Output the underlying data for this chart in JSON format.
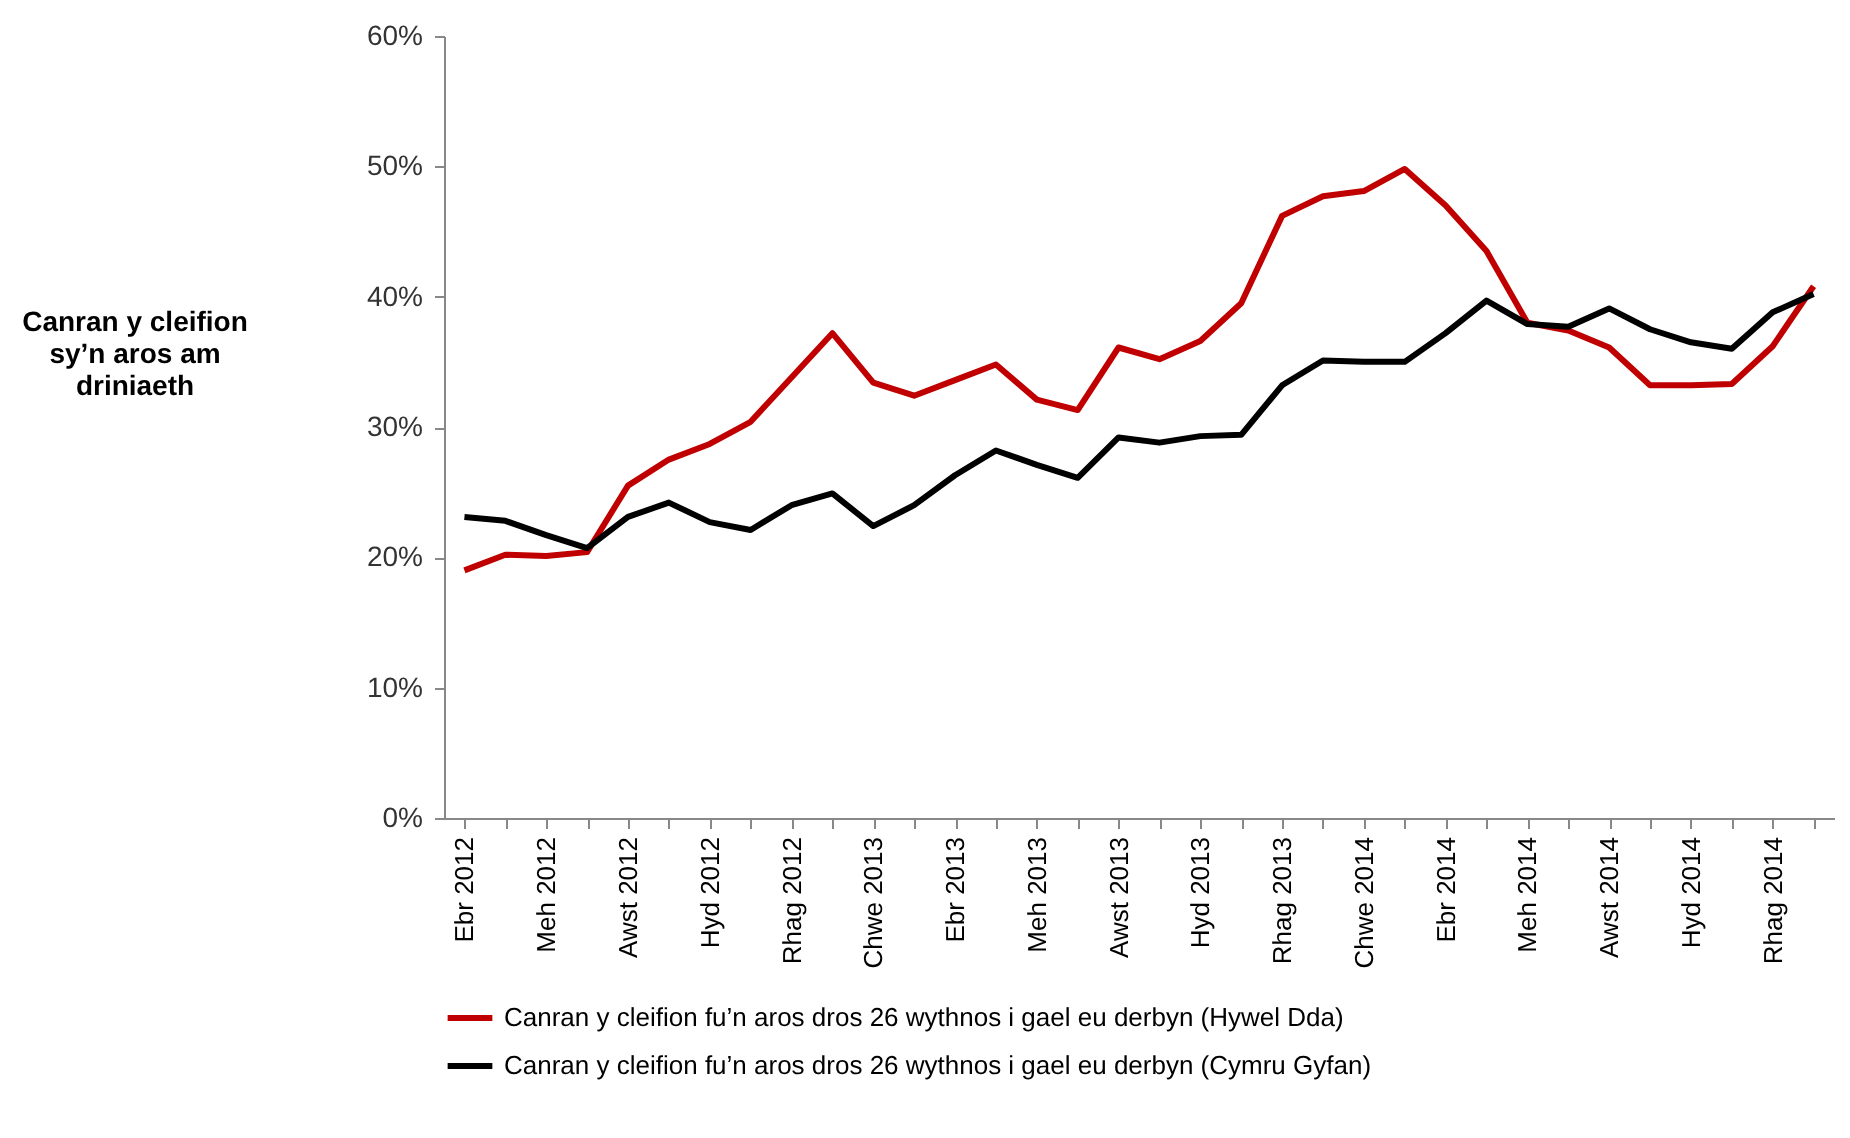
{
  "chart_data": {
    "type": "line",
    "ylabel": "Canran y cleifion sy’n aros am driniaeth",
    "categories": [
      "Ebr 2012",
      null,
      "Meh 2012",
      null,
      "Awst 2012",
      null,
      "Hyd 2012",
      null,
      "Rhag 2012",
      null,
      "Chwe 2013",
      null,
      "Ebr 2013",
      null,
      "Meh 2013",
      null,
      "Awst 2013",
      null,
      "Hyd 2013",
      null,
      "Rhag 2013",
      null,
      "Chwe 2014",
      null,
      "Ebr 2014",
      null,
      "Meh 2014",
      null,
      "Awst 2014",
      null,
      "Hyd 2014",
      null,
      "Rhag 2014",
      null
    ],
    "series": [
      {
        "name": "Canran y cleifion fu’n aros dros 26 wythnos i gael eu derbyn (Hywel Dda)",
        "color": "#c00000",
        "values": [
          19.0,
          20.2,
          20.1,
          20.4,
          25.5,
          27.5,
          28.7,
          30.4,
          33.8,
          37.2,
          33.4,
          32.4,
          33.6,
          34.8,
          32.1,
          31.3,
          36.1,
          35.2,
          36.6,
          39.5,
          46.2,
          47.7,
          48.1,
          49.8,
          47.0,
          43.5,
          38.0,
          37.4,
          36.1,
          33.2,
          33.2,
          33.3,
          36.2,
          40.8
        ]
      },
      {
        "name": "Canran y cleifion fu’n aros dros 26 wythnos i gael eu derbyn (Cymru Gyfan)",
        "color": "#000000",
        "values": [
          23.1,
          22.8,
          21.7,
          20.7,
          23.1,
          24.2,
          22.7,
          22.1,
          24.0,
          24.9,
          22.4,
          24.0,
          26.3,
          28.2,
          27.1,
          26.1,
          29.2,
          28.8,
          29.3,
          29.4,
          33.2,
          35.1,
          35.0,
          35.0,
          37.2,
          39.7,
          37.9,
          37.7,
          39.1,
          37.5,
          36.5,
          36.0,
          38.8,
          40.2
        ]
      }
    ],
    "ylim": [
      0,
      60
    ],
    "yticks": [
      {
        "value": 0,
        "label": "0%"
      },
      {
        "value": 10,
        "label": "10%"
      },
      {
        "value": 20,
        "label": "20%"
      },
      {
        "value": 30,
        "label": "30%"
      },
      {
        "value": 40,
        "label": "40%"
      },
      {
        "value": 50,
        "label": "50%"
      },
      {
        "value": 60,
        "label": "60%"
      }
    ],
    "grid": false,
    "legend": "bottom",
    "marker": "none",
    "line_style": "solid"
  }
}
